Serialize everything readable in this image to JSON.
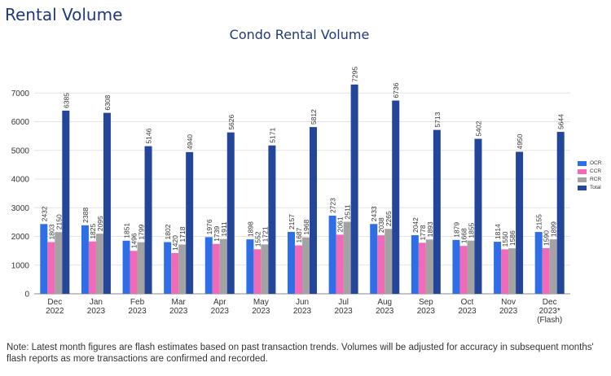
{
  "page_heading": "Rental Volume",
  "note": "Note: Latest month figures are flash estimates based on past transaction trends. Volumes will be adjusted for accuracy in subsequent months' flash reports as more transactions are confirmed and recorded.",
  "chart_data": {
    "type": "bar",
    "title": "Condo Rental Volume",
    "xlabel": "",
    "ylabel": "",
    "ylim": [
      0,
      8000
    ],
    "yticks": [
      0,
      1000,
      2000,
      3000,
      4000,
      5000,
      6000,
      7000
    ],
    "grid": true,
    "legend_position": "right",
    "categories": [
      [
        "Dec",
        "2022"
      ],
      [
        "Jan",
        "2023"
      ],
      [
        "Feb",
        "2023"
      ],
      [
        "Mar",
        "2023"
      ],
      [
        "Apr",
        "2023"
      ],
      [
        "May",
        "2023"
      ],
      [
        "Jun",
        "2023"
      ],
      [
        "Jul",
        "2023"
      ],
      [
        "Aug",
        "2023"
      ],
      [
        "Sep",
        "2023"
      ],
      [
        "Oct",
        "2023"
      ],
      [
        "Nov",
        "2023"
      ],
      [
        "Dec",
        "2023*",
        "(Flash)"
      ]
    ],
    "series": [
      {
        "name": "OCR",
        "color": "#2e6fe8",
        "values": [
          2432,
          2388,
          1851,
          1802,
          1976,
          1898,
          2157,
          2723,
          2433,
          2042,
          1879,
          1814,
          2155
        ]
      },
      {
        "name": "CCR",
        "color": "#f06ab8",
        "values": [
          1803,
          1825,
          1496,
          1420,
          1739,
          1552,
          1687,
          2061,
          2038,
          1778,
          1668,
          1550,
          1590
        ]
      },
      {
        "name": "RCR",
        "color": "#a3a3a3",
        "values": [
          2150,
          2095,
          1799,
          1718,
          1911,
          1721,
          1968,
          2511,
          2265,
          1893,
          1855,
          1586,
          1899
        ]
      },
      {
        "name": "Total",
        "color": "#23459a",
        "values": [
          6385,
          6308,
          5146,
          4940,
          5626,
          5171,
          5812,
          7295,
          6736,
          5713,
          5402,
          4950,
          5644
        ]
      }
    ]
  }
}
